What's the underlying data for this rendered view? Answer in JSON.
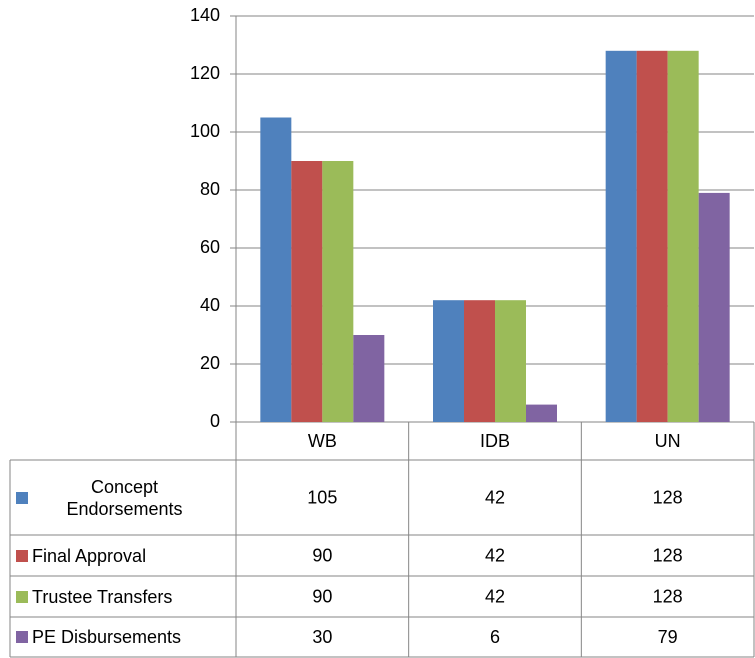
{
  "chart_data": {
    "type": "bar",
    "categories": [
      "WB",
      "IDB",
      "UN"
    ],
    "series": [
      {
        "name": "Concept Endorsements",
        "color": "#4f81bd",
        "values": [
          105,
          42,
          128
        ]
      },
      {
        "name": "Final Approval",
        "color": "#c0504d",
        "values": [
          90,
          42,
          128
        ]
      },
      {
        "name": "Trustee Transfers",
        "color": "#9bbb59",
        "values": [
          90,
          42,
          128
        ]
      },
      {
        "name": "PE Disbursements",
        "color": "#8064a2",
        "values": [
          30,
          6,
          79
        ]
      }
    ],
    "ylim": [
      0,
      140
    ],
    "yticks": [
      0,
      20,
      40,
      60,
      80,
      100,
      120,
      140
    ],
    "grid": true,
    "data_table": true
  }
}
